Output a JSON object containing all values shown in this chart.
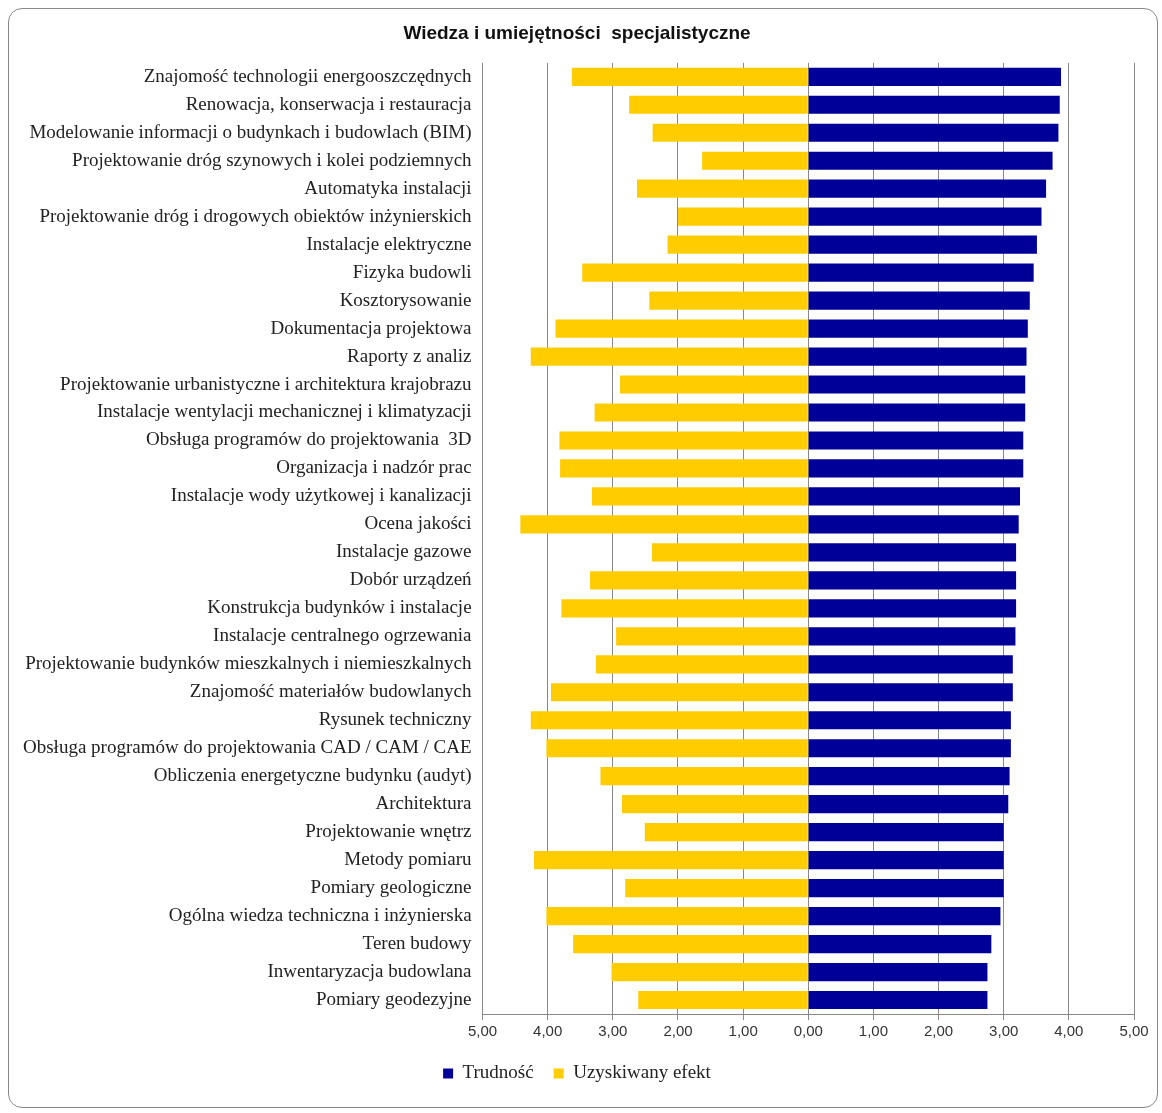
{
  "chart_data": {
    "type": "bar",
    "title": "Wiedza i umiejętności  specjalistyczne",
    "orientation": "horizontal",
    "stacked": true,
    "grid": "x",
    "legend": "bottom",
    "categories": [
      "Znajomość technologii energooszczędnych",
      "Renowacja, konserwacja i restauracja",
      "Modelowanie informacji o budynkach i budowlach (BIM)",
      "Projektowanie dróg szynowych i kolei podziemnych",
      "Automatyka instalacji",
      "Projektowanie dróg i drogowych obiektów inżynierskich",
      "Instalacje elektryczne",
      "Fizyka budowli",
      "Kosztorysowanie",
      "Dokumentacja projektowa",
      "Raporty z analiz",
      "Projektowanie urbanistyczne i architektura krajobrazu",
      "Instalacje wentylacji mechanicznej i klimatyzacji",
      "Obsługa programów do projektowania  3D",
      "Organizacja i nadzór prac",
      "Instalacje wody użytkowej i kanalizacji",
      "Ocena jakości",
      "Instalacje gazowe",
      "Dobór urządzeń",
      "Konstrukcja budynków i instalacje",
      "Instalacje centralnego ogrzewania",
      "Projektowanie budynków mieszkalnych i niemieszkalnych",
      "Znajomość materiałów budowlanych",
      "Rysunek techniczny",
      "Obsługa programów do projektowania CAD / CAM / CAE",
      "Obliczenia energetyczne budynku (audyt)",
      "Architektura",
      "Projektowanie wnętrz",
      "Metody pomiaru",
      "Pomiary geologiczne",
      "Ogólna wiedza techniczna i inżynierska",
      "Teren budowy",
      "Inwentaryzacja budowlana",
      "Pomiary geodezyjne"
    ],
    "series": [
      {
        "name": "Trudność",
        "color": "#000099",
        "values": [
          3.88,
          3.86,
          3.84,
          3.75,
          3.65,
          3.58,
          3.51,
          3.46,
          3.4,
          3.37,
          3.35,
          3.33,
          3.33,
          3.3,
          3.3,
          3.25,
          3.23,
          3.19,
          3.19,
          3.19,
          3.18,
          3.14,
          3.14,
          3.11,
          3.11,
          3.09,
          3.07,
          3.0,
          3.0,
          3.0,
          2.95,
          2.81,
          2.75,
          2.75
        ]
      },
      {
        "name": "Uzyskiwany efekt",
        "color": "#ffcc00",
        "values": [
          -3.63,
          -2.75,
          -2.39,
          -1.63,
          -2.63,
          -2.0,
          -2.16,
          -3.47,
          -2.44,
          -3.88,
          -4.26,
          -2.89,
          -3.28,
          -3.82,
          -3.81,
          -3.32,
          -4.42,
          -2.4,
          -3.35,
          -3.79,
          -2.95,
          -3.26,
          -3.95,
          -4.26,
          -4.02,
          -3.19,
          -2.86,
          -2.51,
          -4.21,
          -2.81,
          -4.02,
          -3.61,
          -3.02,
          -2.61
        ]
      }
    ],
    "xlim": [
      -5,
      5
    ],
    "xticks": [
      {
        "value": -5,
        "label": "5,00"
      },
      {
        "value": -4,
        "label": "4,00"
      },
      {
        "value": -3,
        "label": "3,00"
      },
      {
        "value": -2,
        "label": "2,00"
      },
      {
        "value": -1,
        "label": "1,00"
      },
      {
        "value": 0,
        "label": "0,00"
      },
      {
        "value": 1,
        "label": "1,00"
      },
      {
        "value": 2,
        "label": "2,00"
      },
      {
        "value": 3,
        "label": "3,00"
      },
      {
        "value": 4,
        "label": "4,00"
      },
      {
        "value": 5,
        "label": "5,00"
      }
    ]
  }
}
